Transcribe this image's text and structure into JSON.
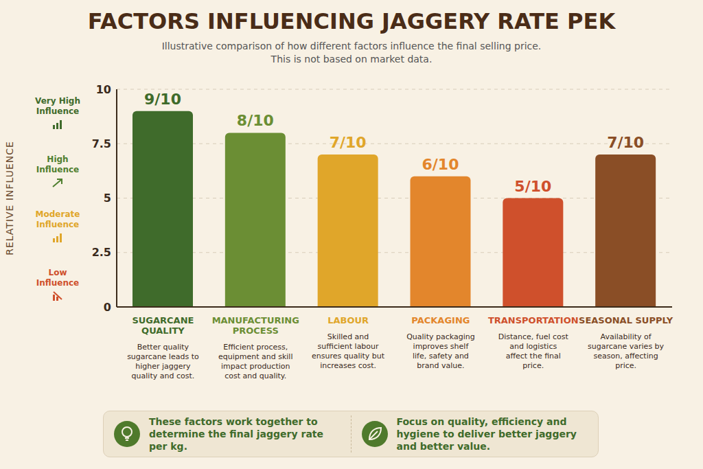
{
  "chart_data": {
    "type": "bar",
    "title": "FACTORS INFLUENCING JAGGERY RATE PEK",
    "subtitle": [
      "Illustrative comparison of how different factors influence the final selling price.",
      "This is not based on market data."
    ],
    "y_label": "RELATIVE INFLUENCE",
    "categories": [
      "SUGARCANE QUALITY",
      "MANUFACTURING PROCESS",
      "LABOUR",
      "PACKAGING",
      "TRANSPORTATION",
      "SEASONAL SUPPLY"
    ],
    "values": [
      9,
      8,
      7,
      6,
      5,
      7
    ],
    "value_labels": [
      "9/10",
      "8/10",
      "7/10",
      "6/10",
      "5/10",
      "7/10"
    ],
    "data_labels": true,
    "colors": [
      "#3f6b2b",
      "#6b8e34",
      "#e0a62a",
      "#e3862c",
      "#cf502c",
      "#8a4e26"
    ],
    "descriptions": [
      "Better quality sugarcane leads to higher jaggery quality and cost.",
      "Efficient process, equipment and skill impact production cost and quality.",
      "Skilled and sufficient labour ensures quality but increases cost.",
      "Quality packaging improves shelf life, safety and brand value.",
      "Distance, fuel cost and logistics affect the final price.",
      "Availability of sugarcane varies by season, affecting price."
    ],
    "ylim": [
      0,
      10
    ],
    "yticks": [
      0,
      2.5,
      5,
      7.5,
      10
    ],
    "grid": true,
    "influence_levels": [
      "Very High Influence",
      "High Influence",
      "Moderate Influence",
      "Low Influence"
    ],
    "notes": [
      "These factors work together to determine the final jaggery rate per kg.",
      "Focus on quality, efficiency and hygiene to deliver better jaggery and better value."
    ]
  }
}
